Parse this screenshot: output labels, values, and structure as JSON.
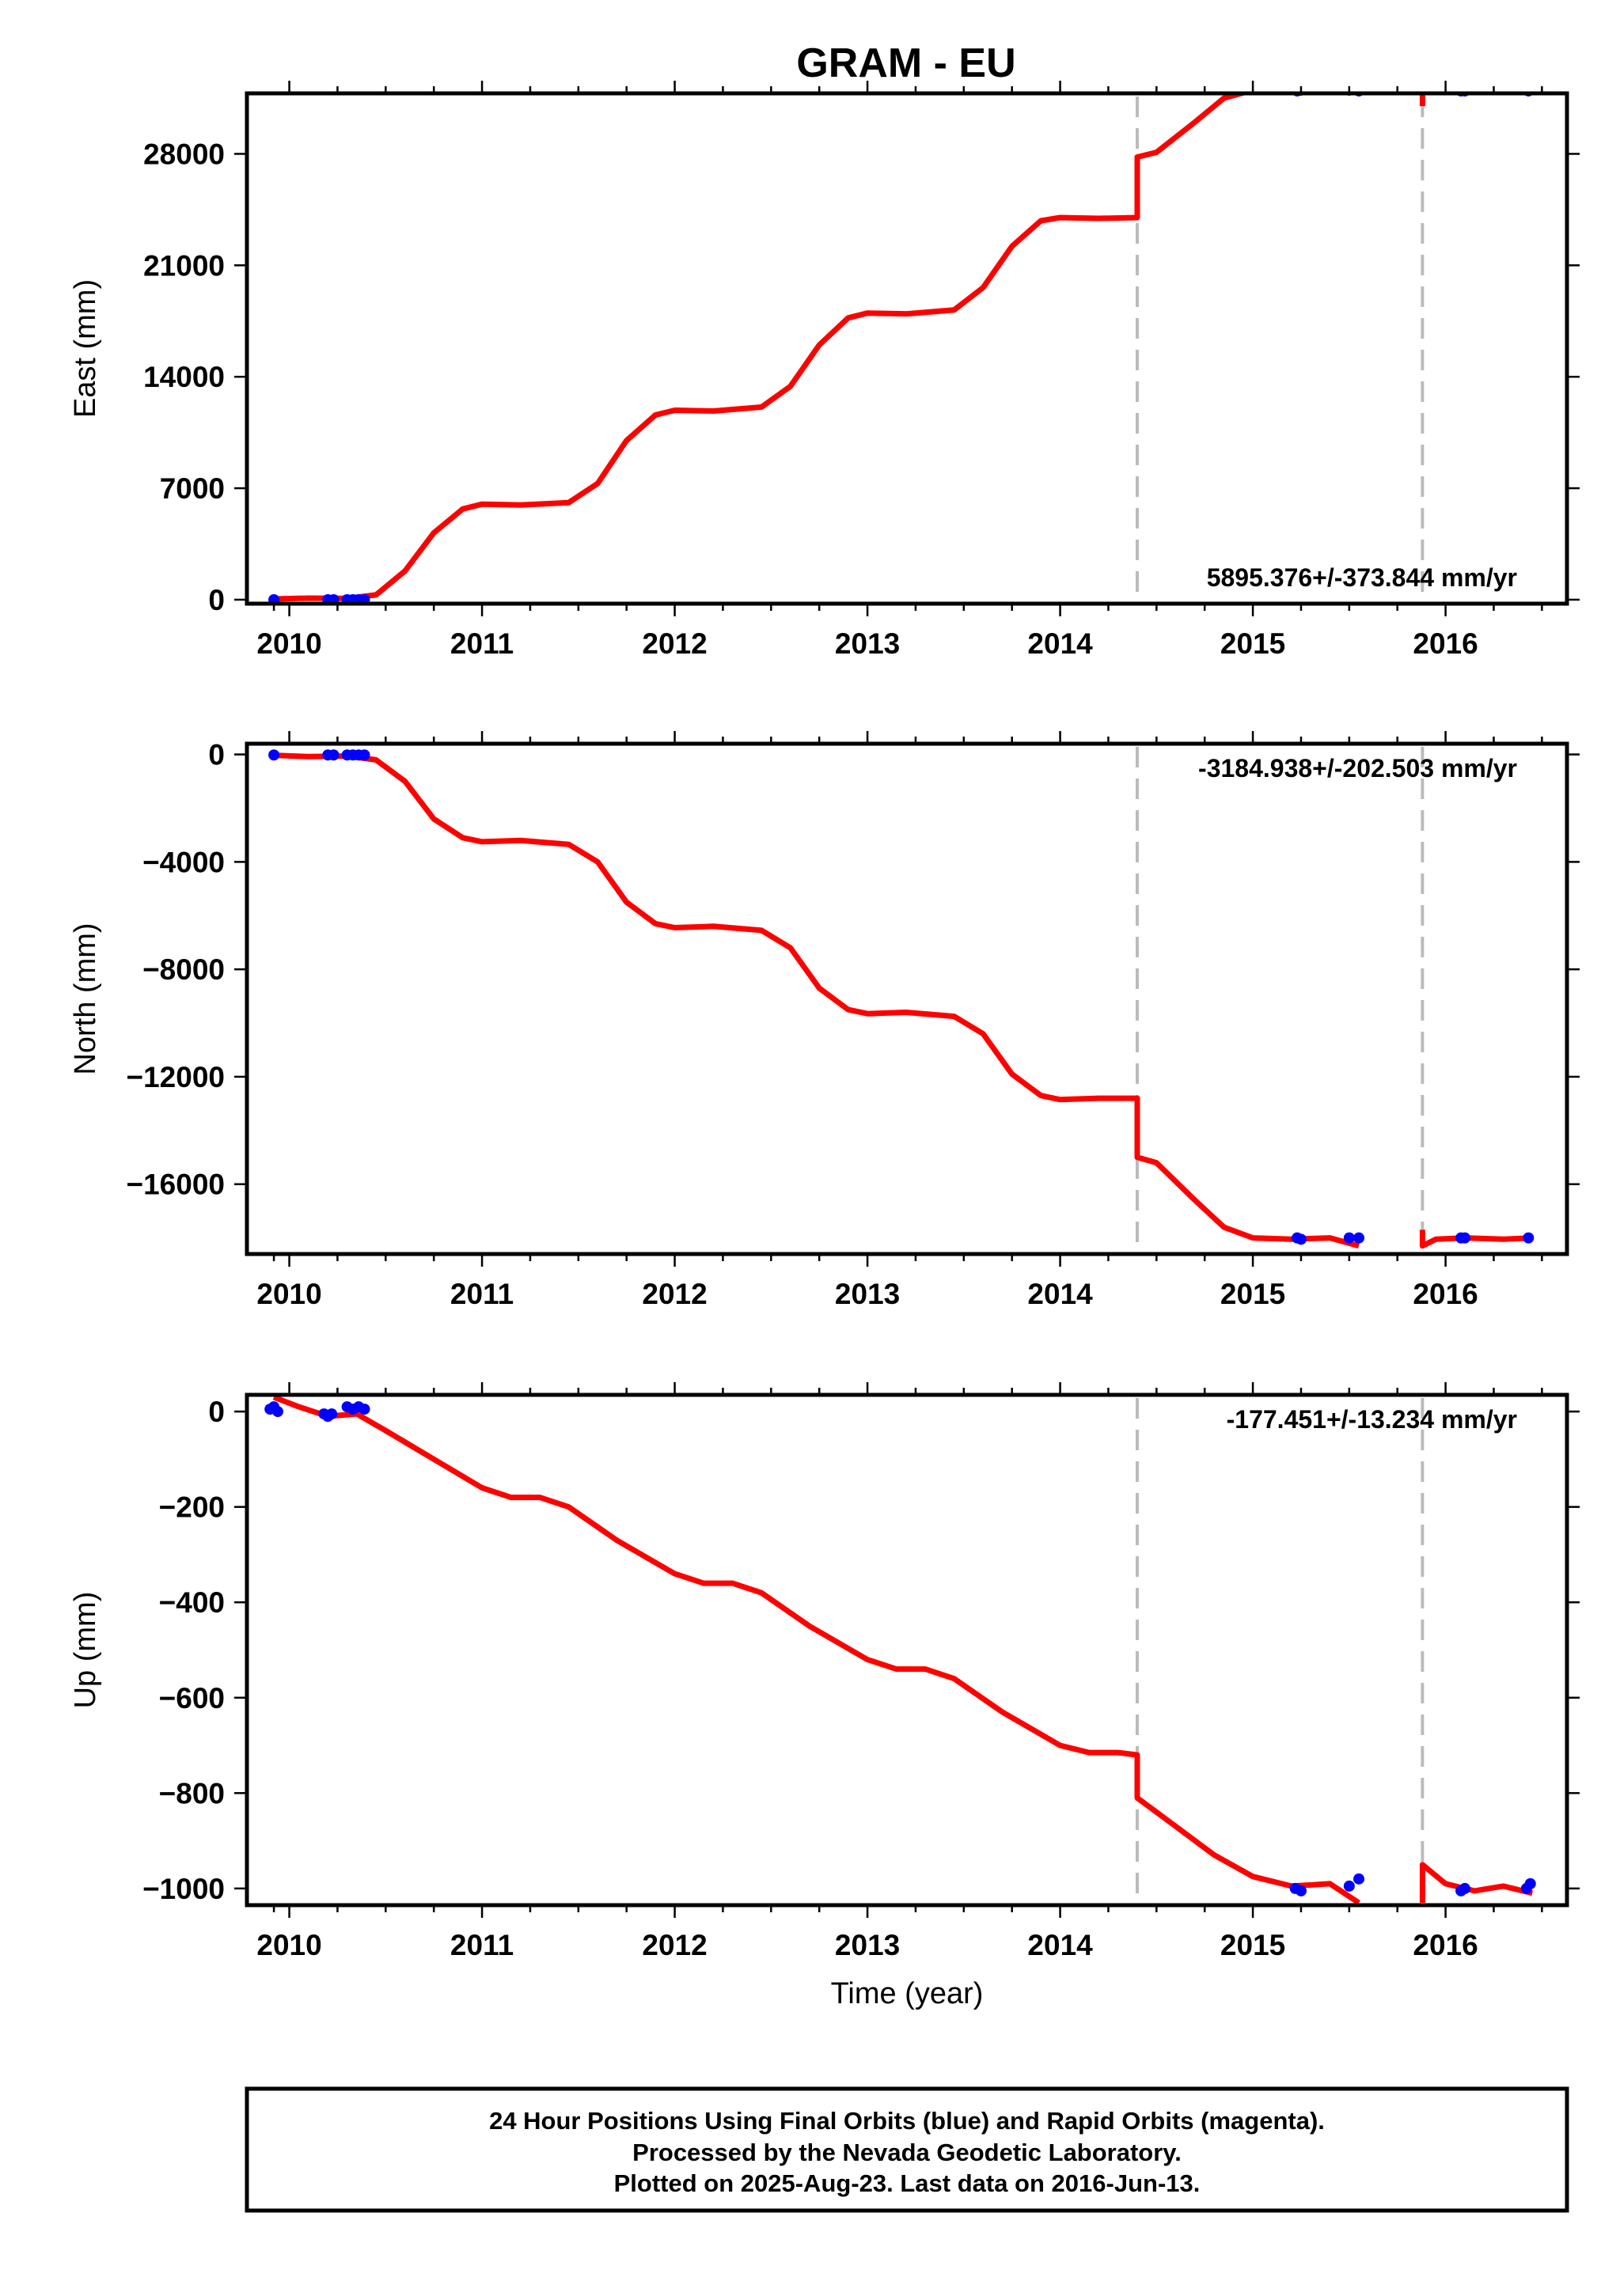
{
  "title": "GRAM - EU",
  "colors": {
    "model": "#ff0000",
    "final_orbits": "#0000ff",
    "breaks": "#bbbbbb"
  },
  "footer": {
    "line1": "24 Hour Positions Using Final Orbits (blue) and Rapid Orbits (magenta).",
    "line2": "Processed by the Nevada Geodetic Laboratory.",
    "line3": "Plotted on 2025-Aug-23. Last data on 2016-Jun-13."
  },
  "chart_data": [
    {
      "type": "line",
      "ylabel": "East (mm)",
      "rate": "5895.376+/-373.844 mm/yr",
      "rate_position": "bottom-right",
      "xlim": [
        2009.78,
        2016.63
      ],
      "ylim": [
        -250,
        31800
      ],
      "xticks": [
        "2010",
        "2011",
        "2012",
        "2013",
        "2014",
        "2015",
        "2016"
      ],
      "yticks": [
        "0",
        "7000",
        "14000",
        "21000",
        "28000"
      ],
      "ytick_values": [
        0,
        7000,
        14000,
        21000,
        28000
      ],
      "breaks": [
        2014.4,
        2015.88
      ],
      "model": {
        "x": [
          2009.92,
          2010.1,
          2010.3,
          2010.45,
          2010.6,
          2010.75,
          2010.9,
          2011.0,
          2011.2,
          2011.45,
          2011.6,
          2011.75,
          2011.9,
          2012.0,
          2012.2,
          2012.45,
          2012.6,
          2012.75,
          2012.9,
          2013.0,
          2013.2,
          2013.45,
          2013.6,
          2013.75,
          2013.9,
          2014.0,
          2014.2,
          2014.4,
          2014.4,
          2014.5,
          2014.7,
          2014.85,
          2015.0,
          2015.2,
          2015.4,
          2015.55
        ],
        "y": [
          50,
          100,
          80,
          300,
          1800,
          4200,
          5700,
          6000,
          5950,
          6100,
          7300,
          10000,
          11600,
          11900,
          11850,
          12100,
          13400,
          16000,
          17700,
          18000,
          17950,
          18200,
          19600,
          22200,
          23800,
          24000,
          23950,
          24000,
          27800,
          28100,
          30000,
          31500,
          32000,
          32000,
          32000,
          32300
        ],
        "segment2": {
          "x": [
            2015.88,
            2015.88,
            2015.95,
            2016.1,
            2016.3,
            2016.45
          ],
          "y": [
            31000,
            32300,
            32000,
            32000,
            32000,
            32000
          ]
        }
      },
      "final_orbits": {
        "x": [
          2009.92,
          2010.2,
          2010.23,
          2010.3,
          2010.33,
          2010.36,
          2010.39,
          2015.23,
          2015.25,
          2015.5,
          2015.55,
          2016.08,
          2016.1,
          2016.43
        ],
        "y": [
          0,
          0,
          0,
          0,
          0,
          0,
          0,
          31950,
          32000,
          32000,
          31950,
          31950,
          31950,
          31950
        ]
      }
    },
    {
      "type": "line",
      "ylabel": "North (mm)",
      "rate": "-3184.938+/-202.503 mm/yr",
      "rate_position": "top-right",
      "xlim": [
        2009.78,
        2016.63
      ],
      "ylim": [
        -18600,
        400
      ],
      "xticks": [
        "2010",
        "2011",
        "2012",
        "2013",
        "2014",
        "2015",
        "2016"
      ],
      "yticks": [
        "0",
        "−4000",
        "−8000",
        "−12000",
        "−16000"
      ],
      "ytick_values": [
        0,
        -4000,
        -8000,
        -12000,
        -16000
      ],
      "breaks": [
        2014.4,
        2015.88
      ],
      "model": {
        "x": [
          2009.92,
          2010.1,
          2010.3,
          2010.45,
          2010.6,
          2010.75,
          2010.9,
          2011.0,
          2011.2,
          2011.45,
          2011.6,
          2011.75,
          2011.9,
          2012.0,
          2012.2,
          2012.45,
          2012.6,
          2012.75,
          2012.9,
          2013.0,
          2013.2,
          2013.45,
          2013.6,
          2013.75,
          2013.9,
          2014.0,
          2014.2,
          2014.4,
          2014.4,
          2014.5,
          2014.7,
          2014.85,
          2015.0,
          2015.2,
          2015.4,
          2015.55
        ],
        "y": [
          -30,
          -80,
          -60,
          -200,
          -1000,
          -2400,
          -3100,
          -3250,
          -3200,
          -3350,
          -4000,
          -5500,
          -6300,
          -6450,
          -6400,
          -6550,
          -7200,
          -8700,
          -9500,
          -9650,
          -9600,
          -9750,
          -10400,
          -11900,
          -12700,
          -12850,
          -12800,
          -12800,
          -15000,
          -15200,
          -16600,
          -17600,
          -18000,
          -18050,
          -18000,
          -18300
        ],
        "segment2": {
          "x": [
            2015.88,
            2015.88,
            2015.95,
            2016.1,
            2016.3,
            2016.45
          ],
          "y": [
            -17700,
            -18300,
            -18050,
            -18000,
            -18050,
            -18000
          ]
        }
      },
      "final_orbits": {
        "x": [
          2009.92,
          2010.2,
          2010.23,
          2010.3,
          2010.33,
          2010.36,
          2010.39,
          2015.23,
          2015.25,
          2015.5,
          2015.55,
          2016.08,
          2016.1,
          2016.43
        ],
        "y": [
          -20,
          -20,
          -20,
          -20,
          -20,
          -20,
          -20,
          -18000,
          -18050,
          -18000,
          -18000,
          -18000,
          -18000,
          -18000
        ]
      }
    },
    {
      "type": "line",
      "ylabel": "Up (mm)",
      "xlabel": "Time (year)",
      "rate": "-177.451+/-13.234 mm/yr",
      "rate_position": "top-right",
      "xlim": [
        2009.78,
        2016.63
      ],
      "ylim": [
        -1035,
        35
      ],
      "xticks": [
        "2010",
        "2011",
        "2012",
        "2013",
        "2014",
        "2015",
        "2016"
      ],
      "yticks": [
        "0",
        "−200",
        "−400",
        "−600",
        "−800",
        "−1000"
      ],
      "ytick_values": [
        0,
        -200,
        -400,
        -600,
        -800,
        -1000
      ],
      "breaks": [
        2014.4,
        2015.88
      ],
      "model": {
        "x": [
          2009.92,
          2010.05,
          2010.2,
          2010.35,
          2010.5,
          2010.75,
          2011.0,
          2011.15,
          2011.3,
          2011.45,
          2011.7,
          2012.0,
          2012.15,
          2012.3,
          2012.45,
          2012.7,
          2013.0,
          2013.15,
          2013.3,
          2013.45,
          2013.7,
          2014.0,
          2014.15,
          2014.3,
          2014.4,
          2014.4,
          2014.6,
          2014.8,
          2015.0,
          2015.2,
          2015.4,
          2015.55
        ],
        "y": [
          30,
          10,
          -10,
          -5,
          -40,
          -100,
          -160,
          -180,
          -180,
          -200,
          -270,
          -340,
          -360,
          -360,
          -380,
          -450,
          -520,
          -540,
          -540,
          -560,
          -630,
          -700,
          -715,
          -715,
          -720,
          -810,
          -870,
          -930,
          -975,
          -995,
          -990,
          -1030
        ],
        "segment2": {
          "x": [
            2015.88,
            2015.88,
            2016.0,
            2016.15,
            2016.3,
            2016.45
          ],
          "y": [
            -1030,
            -950,
            -990,
            -1005,
            -995,
            -1010
          ]
        }
      },
      "final_orbits": {
        "x": [
          2009.9,
          2009.92,
          2009.94,
          2010.18,
          2010.2,
          2010.22,
          2010.3,
          2010.33,
          2010.36,
          2010.39,
          2015.22,
          2015.25,
          2015.5,
          2015.55,
          2016.08,
          2016.1,
          2016.42,
          2016.44
        ],
        "y": [
          5,
          10,
          0,
          -5,
          -10,
          -5,
          10,
          5,
          10,
          5,
          -1000,
          -1005,
          -995,
          -980,
          -1005,
          -1000,
          -1000,
          -990
        ]
      }
    }
  ]
}
